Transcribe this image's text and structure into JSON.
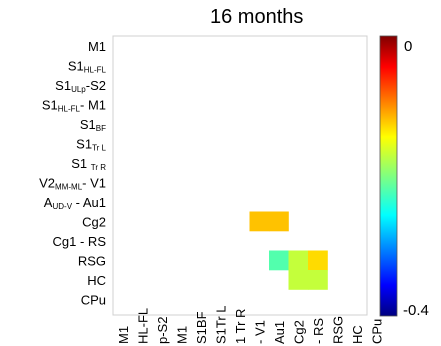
{
  "chart_data": {
    "type": "heatmap",
    "title": "16 months",
    "rows": [
      {
        "main": "M1",
        "sub": ""
      },
      {
        "main": "S1",
        "sub": "HL-FL"
      },
      {
        "main": "S1",
        "sub": "ULp",
        "tail": "-S2"
      },
      {
        "main": "S1",
        "sub": "HL-FL",
        "tail": "- M1"
      },
      {
        "main": "S1",
        "sub": "BF"
      },
      {
        "main": "S1",
        "sub": "Tr L"
      },
      {
        "main": "S1 ",
        "sub": "Tr R"
      },
      {
        "main": "V2",
        "sub": "MM-ML",
        "tail": "- V1"
      },
      {
        "main": "A",
        "sub": "UD-V",
        "tail": " - Au1"
      },
      {
        "main": "Cg2",
        "sub": ""
      },
      {
        "main": "Cg1 - RS",
        "sub": ""
      },
      {
        "main": "RSG",
        "sub": ""
      },
      {
        "main": "HC",
        "sub": ""
      },
      {
        "main": "CPu",
        "sub": ""
      }
    ],
    "columns": [
      "M1",
      "HL-FL",
      "p-S2",
      "M1",
      "S1BF",
      "S1Tr L",
      "1 Tr R",
      "- V1",
      "Au1",
      "Cg2",
      "- RS",
      "RSG",
      "HC",
      "CPu"
    ],
    "cells": [
      {
        "row": 9,
        "col": 7,
        "value": -0.12
      },
      {
        "row": 9,
        "col": 8,
        "value": -0.12
      },
      {
        "row": 11,
        "col": 8,
        "value": -0.22
      },
      {
        "row": 11,
        "col": 9,
        "value": -0.17
      },
      {
        "row": 11,
        "col": 10,
        "value": -0.13
      },
      {
        "row": 12,
        "col": 9,
        "value": -0.17
      },
      {
        "row": 12,
        "col": 10,
        "value": -0.17
      }
    ],
    "colorbar": {
      "min": -0.4,
      "max": 0,
      "tick_labels": [
        "0",
        "-0.4"
      ]
    }
  }
}
